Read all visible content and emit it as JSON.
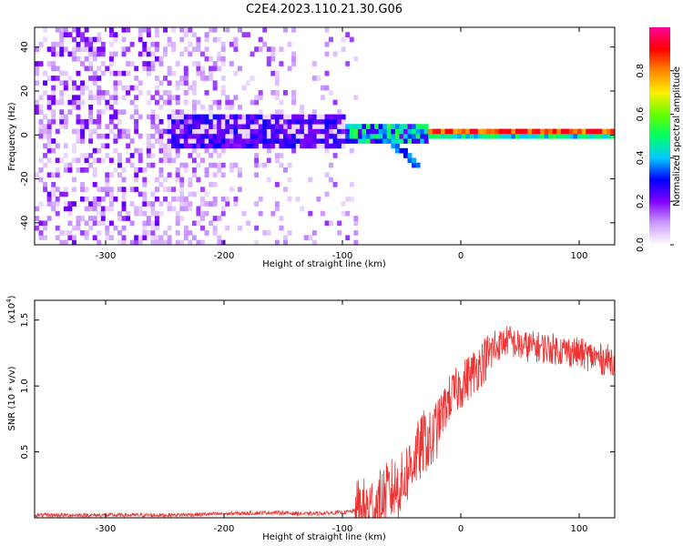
{
  "title": "C2E4.2023.110.21.30.G06",
  "colorbar": {
    "label": "Normalized spectral amplitude",
    "ticks": [
      {
        "value": 0.0,
        "label": "0.0"
      },
      {
        "value": 0.2,
        "label": "0.2"
      },
      {
        "value": 0.4,
        "label": "0.4"
      },
      {
        "value": 0.6,
        "label": "0.6"
      },
      {
        "value": 0.8,
        "label": "0.8"
      }
    ],
    "range": [
      0,
      1
    ],
    "colors": [
      "#ffffff",
      "#cc99ff",
      "#7f00ff",
      "#0000ff",
      "#00ccff",
      "#00ff66",
      "#66ff00",
      "#ffee00",
      "#ff8800",
      "#ff0000",
      "#ff0099"
    ]
  },
  "chart_data": [
    {
      "type": "heatmap",
      "xlabel": "Height of straight line (km)",
      "ylabel": "Frequency (Hz)",
      "xlim": [
        -360,
        130
      ],
      "ylim": [
        -50,
        49
      ],
      "x_ticks": [
        {
          "value": -300,
          "label": "-300"
        },
        {
          "value": -200,
          "label": "-200"
        },
        {
          "value": -100,
          "label": "-100"
        },
        {
          "value": 0,
          "label": "0"
        },
        {
          "value": 100,
          "label": "100"
        }
      ],
      "y_ticks": [
        {
          "value": -40,
          "label": "-40"
        },
        {
          "value": -20,
          "label": "-20"
        },
        {
          "value": 0,
          "label": "0"
        },
        {
          "value": 20,
          "label": "20"
        },
        {
          "value": 40,
          "label": "40"
        }
      ],
      "description_values": {
        "noise_region_x": [
          -360,
          -90
        ],
        "signal_center_frequency": 0,
        "signal_band_halfwidth_far": 8,
        "signal_band_halfwidth_near": 2,
        "peak_amplitude_region_x": [
          -30,
          130
        ]
      },
      "grid": false
    },
    {
      "type": "line",
      "xlabel": "Height of straight line (km)",
      "ylabel": "SNR (10 * v/v)",
      "y_scale_label": "(x10",
      "y_scale_exponent": "4",
      "y_scale_close": ")",
      "xlim": [
        -360,
        130
      ],
      "ylim": [
        0,
        1.65
      ],
      "x_ticks": [
        {
          "value": -300,
          "label": "-300"
        },
        {
          "value": -200,
          "label": "-200"
        },
        {
          "value": -100,
          "label": "-100"
        },
        {
          "value": 0,
          "label": "0"
        },
        {
          "value": 100,
          "label": "100"
        }
      ],
      "y_ticks": [
        {
          "value": 0.5,
          "label": "0.5"
        },
        {
          "value": 1.0,
          "label": "1.0"
        },
        {
          "value": 1.5,
          "label": "1.5"
        }
      ],
      "series": [
        {
          "color": "#ee3333",
          "x": [
            -360,
            -300,
            -250,
            -200,
            -160,
            -130,
            -100,
            -80,
            -70,
            -60,
            -50,
            -45,
            -40,
            -35,
            -30,
            -25,
            -20,
            -15,
            -10,
            -5,
            0,
            10,
            20,
            30,
            40,
            50,
            60,
            80,
            100,
            120,
            130
          ],
          "y": [
            0.02,
            0.02,
            0.02,
            0.03,
            0.04,
            0.03,
            0.04,
            0.06,
            0.1,
            0.2,
            0.25,
            0.35,
            0.45,
            0.5,
            0.6,
            0.55,
            0.7,
            0.8,
            0.9,
            0.95,
            1.0,
            1.1,
            1.2,
            1.3,
            1.35,
            1.3,
            1.3,
            1.28,
            1.25,
            1.2,
            1.2
          ]
        }
      ],
      "grid": false
    }
  ]
}
